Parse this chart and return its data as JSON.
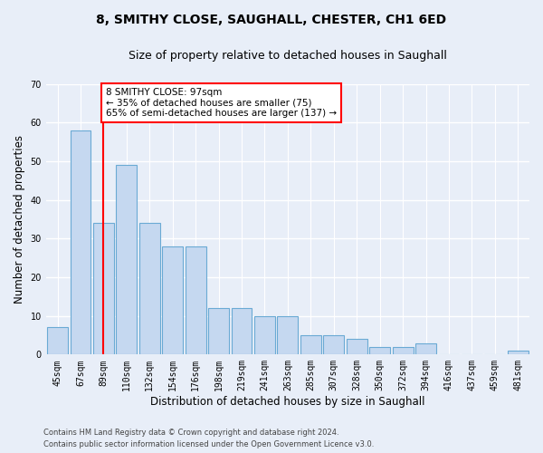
{
  "title": "8, SMITHY CLOSE, SAUGHALL, CHESTER, CH1 6ED",
  "subtitle": "Size of property relative to detached houses in Saughall",
  "xlabel": "Distribution of detached houses by size in Saughall",
  "ylabel": "Number of detached properties",
  "categories": [
    "45sqm",
    "67sqm",
    "89sqm",
    "110sqm",
    "132sqm",
    "154sqm",
    "176sqm",
    "198sqm",
    "219sqm",
    "241sqm",
    "263sqm",
    "285sqm",
    "307sqm",
    "328sqm",
    "350sqm",
    "372sqm",
    "394sqm",
    "416sqm",
    "437sqm",
    "459sqm",
    "481sqm"
  ],
  "values": [
    7,
    58,
    34,
    49,
    34,
    28,
    28,
    12,
    12,
    10,
    10,
    5,
    5,
    4,
    2,
    2,
    3,
    0,
    0,
    0,
    1
  ],
  "bar_color": "#c5d8f0",
  "bar_edge_color": "#6aaad4",
  "red_line_index": 2,
  "annotation_line1": "8 SMITHY CLOSE: 97sqm",
  "annotation_line2": "← 35% of detached houses are smaller (75)",
  "annotation_line3": "65% of semi-detached houses are larger (137) →",
  "ylim": [
    0,
    70
  ],
  "yticks": [
    0,
    10,
    20,
    30,
    40,
    50,
    60,
    70
  ],
  "footer_line1": "Contains HM Land Registry data © Crown copyright and database right 2024.",
  "footer_line2": "Contains public sector information licensed under the Open Government Licence v3.0.",
  "bg_color": "#e8eef8",
  "plot_bg_color": "#e8eef8",
  "grid_color": "#ffffff",
  "title_fontsize": 10,
  "subtitle_fontsize": 9,
  "tick_fontsize": 7,
  "ylabel_fontsize": 8.5,
  "xlabel_fontsize": 8.5,
  "footer_fontsize": 6
}
